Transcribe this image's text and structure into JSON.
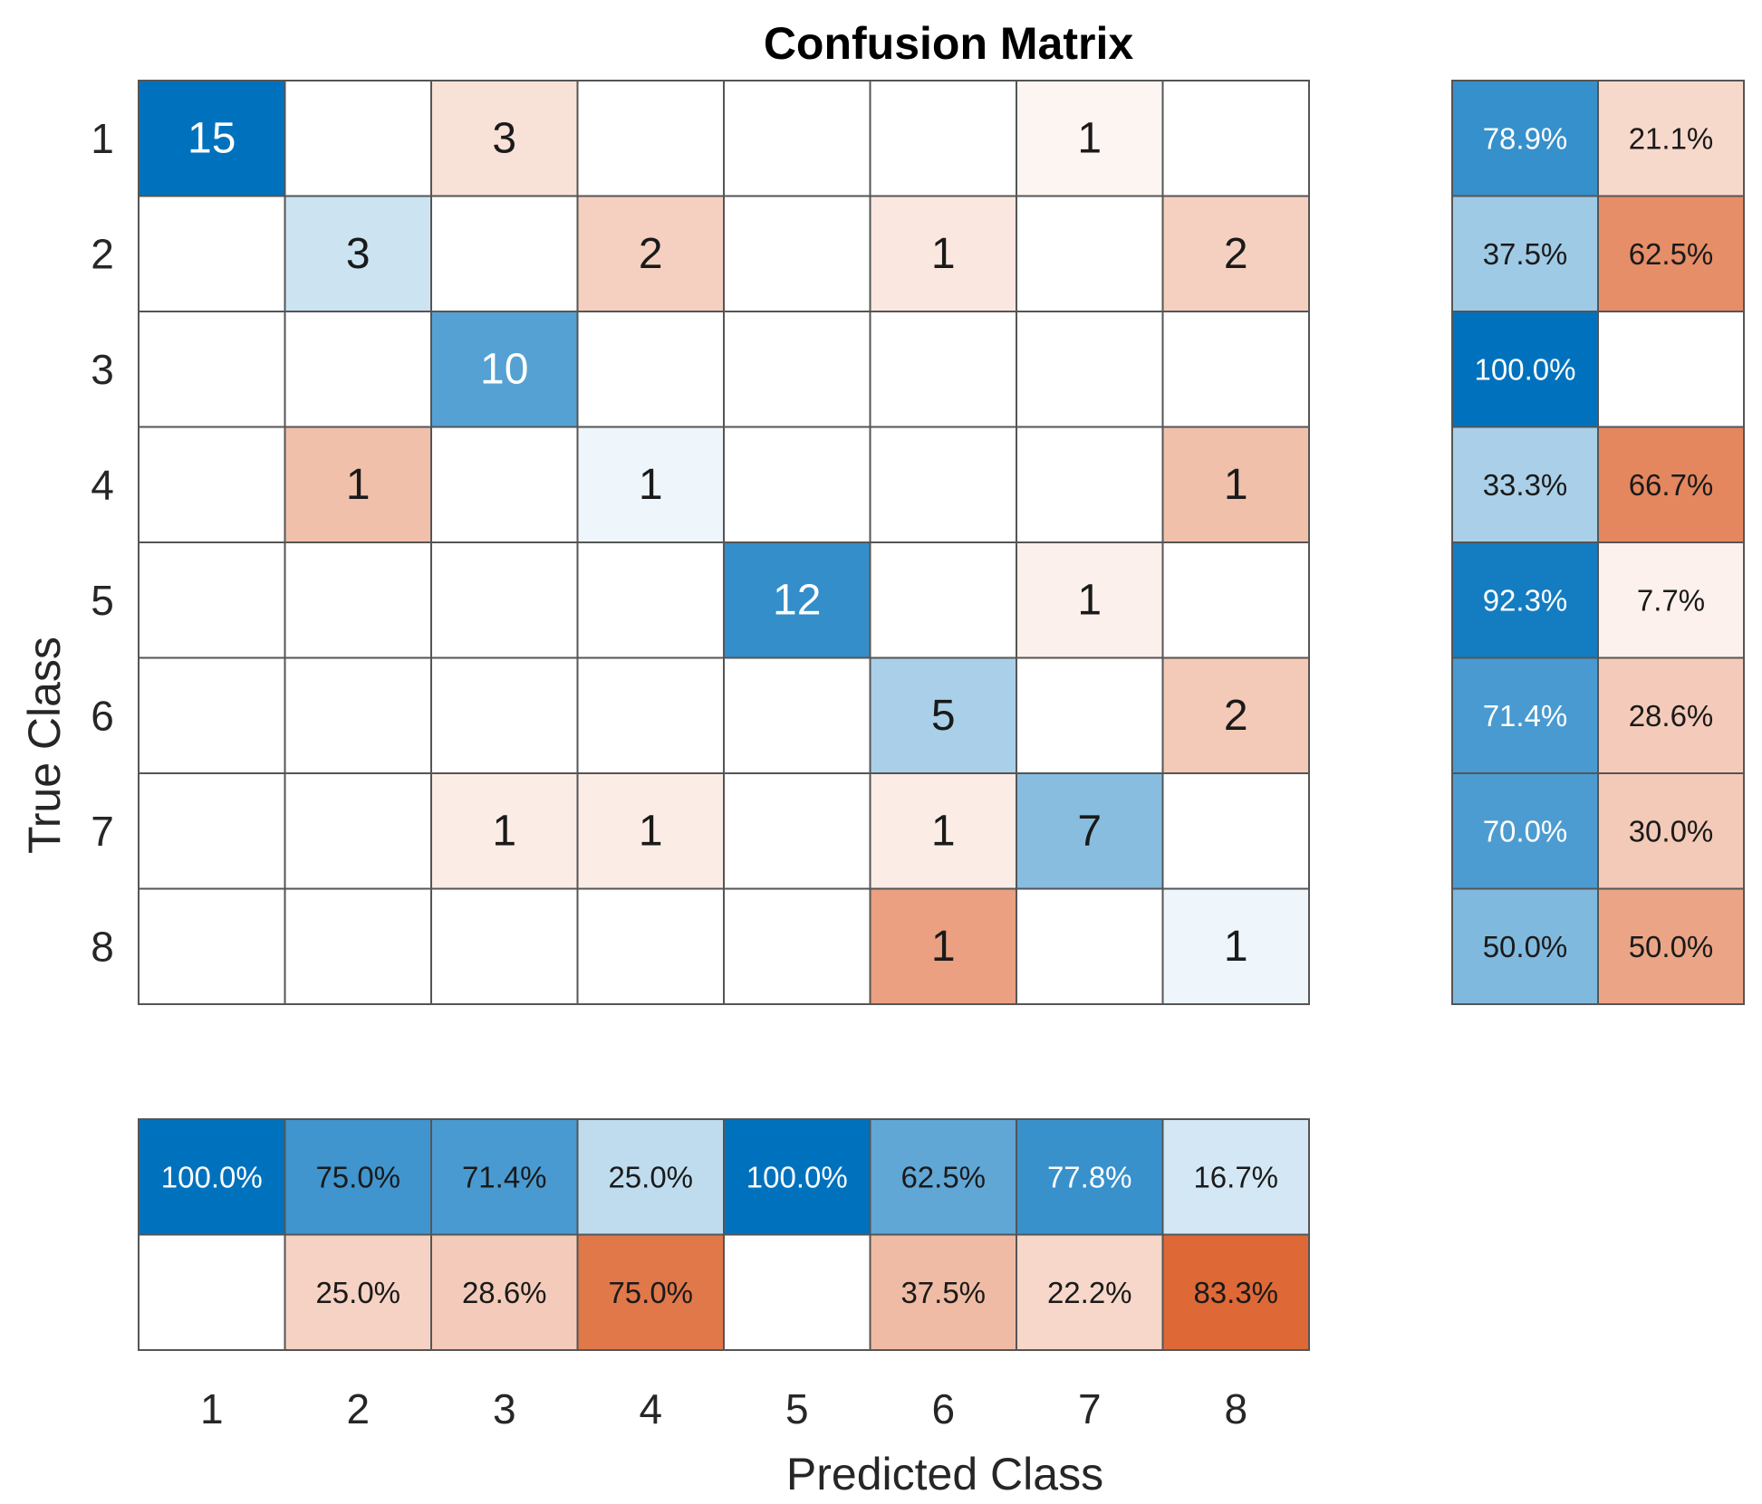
{
  "chart_data": {
    "type": "heatmap",
    "title": "Confusion Matrix",
    "xlabel": "Predicted Class",
    "ylabel": "True Class",
    "classes": [
      "1",
      "2",
      "3",
      "4",
      "5",
      "6",
      "7",
      "8"
    ],
    "matrix": [
      [
        15,
        0,
        3,
        0,
        0,
        0,
        1,
        0
      ],
      [
        0,
        3,
        0,
        2,
        0,
        1,
        0,
        2
      ],
      [
        0,
        0,
        10,
        0,
        0,
        0,
        0,
        0
      ],
      [
        0,
        1,
        0,
        1,
        0,
        0,
        0,
        1
      ],
      [
        0,
        0,
        0,
        0,
        12,
        0,
        1,
        0
      ],
      [
        0,
        0,
        0,
        0,
        0,
        5,
        0,
        2
      ],
      [
        0,
        0,
        1,
        1,
        0,
        1,
        7,
        0
      ],
      [
        0,
        0,
        0,
        0,
        0,
        1,
        0,
        1
      ]
    ],
    "row_summary": {
      "correct": [
        "78.9%",
        "37.5%",
        "100.0%",
        "33.3%",
        "92.3%",
        "71.4%",
        "70.0%",
        "50.0%"
      ],
      "incorrect": [
        "21.1%",
        "62.5%",
        "",
        "66.7%",
        "7.7%",
        "28.6%",
        "30.0%",
        "50.0%"
      ]
    },
    "column_summary": {
      "correct": [
        "100.0%",
        "75.0%",
        "71.4%",
        "25.0%",
        "100.0%",
        "62.5%",
        "77.8%",
        "16.7%"
      ],
      "incorrect": [
        "",
        "25.0%",
        "28.6%",
        "75.0%",
        "",
        "37.5%",
        "22.2%",
        "83.3%"
      ]
    },
    "colors": {
      "correct": "#0072bd",
      "incorrect": "#d95319",
      "grid": "#555555",
      "text_dark": "#1a1a1a",
      "text_light": "#ffffff"
    }
  }
}
